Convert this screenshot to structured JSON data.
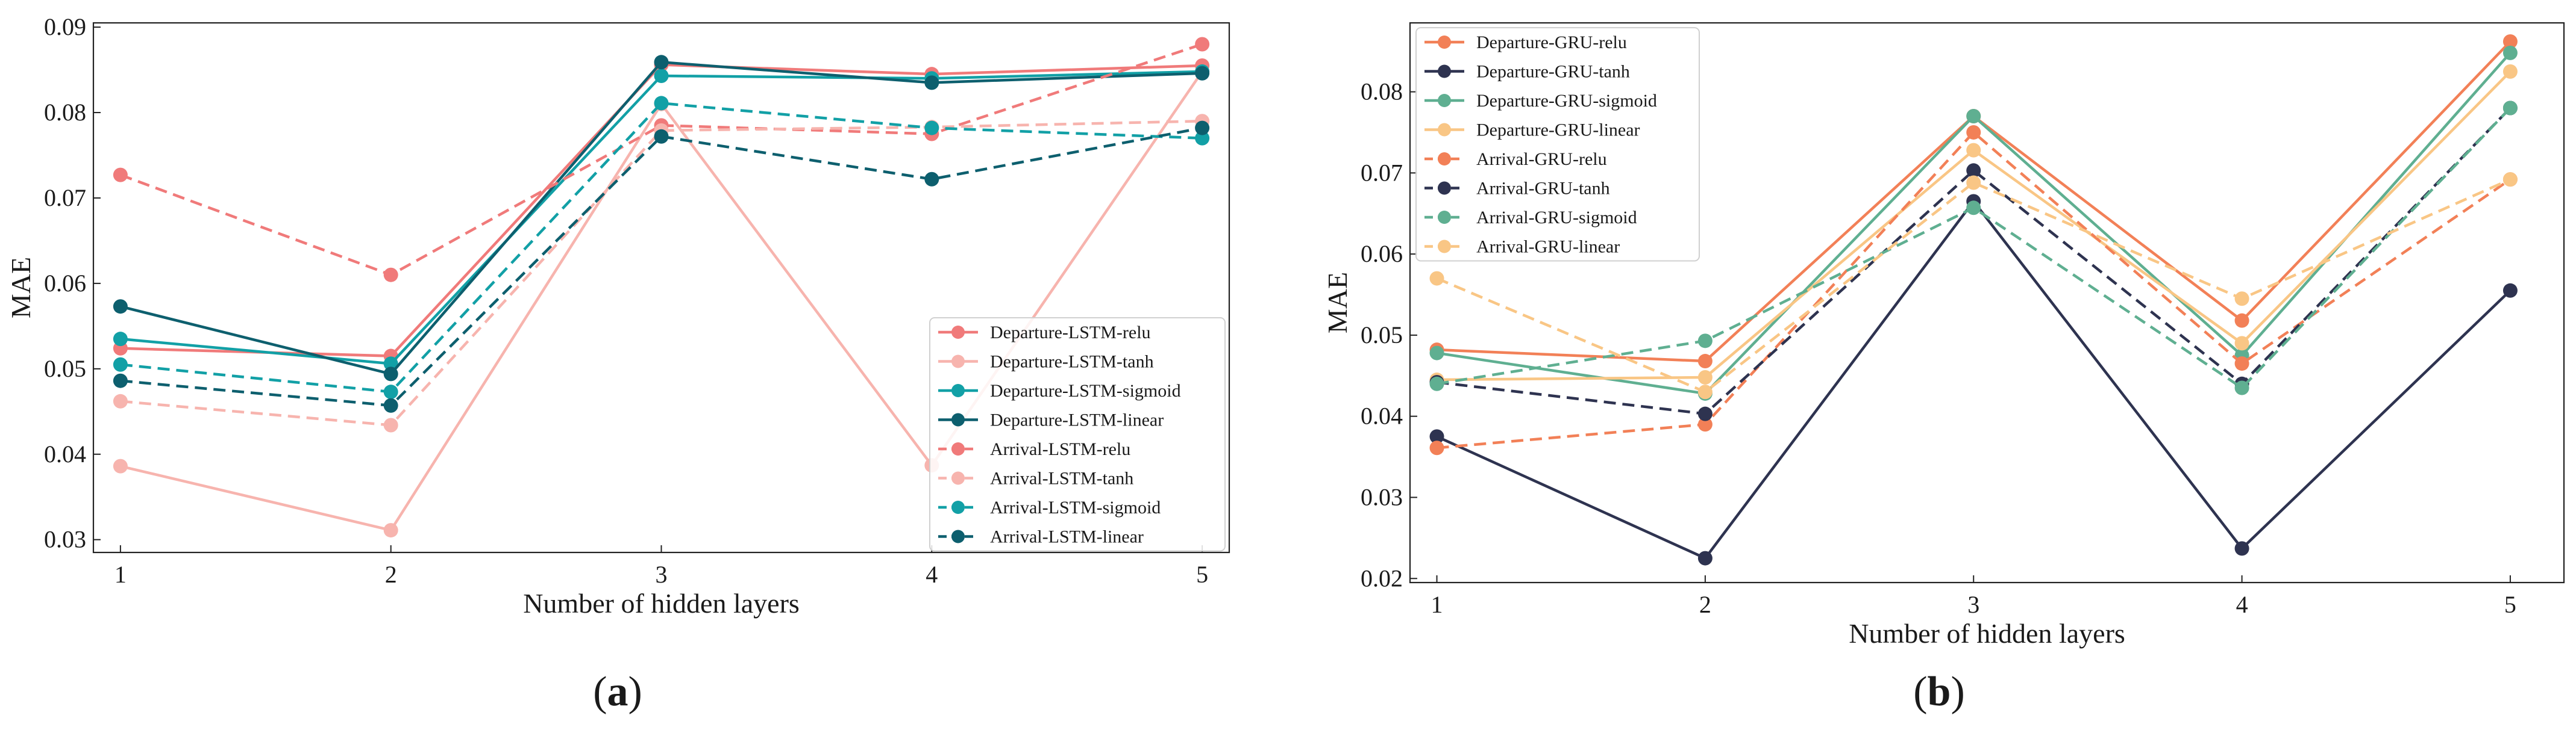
{
  "chart_data": [
    {
      "type": "line",
      "panel_label": {
        "open": "(",
        "letter": "a",
        "close": ")"
      },
      "title": "",
      "xlabel": "Number of hidden layers",
      "ylabel": "MAE",
      "x": [
        1,
        2,
        3,
        4,
        5
      ],
      "xlim": [
        0.9,
        5.1
      ],
      "ylim": [
        0.0285,
        0.0905
      ],
      "yticks": [
        0.03,
        0.04,
        0.05,
        0.06,
        0.07,
        0.08,
        0.09
      ],
      "ytick_labels": [
        "0.03",
        "0.04",
        "0.05",
        "0.06",
        "0.07",
        "0.08",
        "0.09"
      ],
      "xtick_labels": [
        "1",
        "2",
        "3",
        "4",
        "5"
      ],
      "grid": false,
      "legend_position": "bottom-right",
      "series": [
        {
          "name": "Departure-LSTM-relu",
          "color": "#F07A7A",
          "dash": "solid",
          "values": [
            0.0524,
            0.0515,
            0.0856,
            0.0845,
            0.0855
          ]
        },
        {
          "name": "Departure-LSTM-tanh",
          "color": "#F7B4AE",
          "dash": "solid",
          "values": [
            0.0386,
            0.0311,
            0.081,
            0.0387,
            0.0848
          ]
        },
        {
          "name": "Departure-LSTM-sigmoid",
          "color": "#12A0A6",
          "dash": "solid",
          "values": [
            0.0535,
            0.0506,
            0.0843,
            0.084,
            0.0848
          ]
        },
        {
          "name": "Departure-LSTM-linear",
          "color": "#0D5F6E",
          "dash": "solid",
          "values": [
            0.0573,
            0.0494,
            0.0859,
            0.0835,
            0.0846
          ]
        },
        {
          "name": "Arrival-LSTM-relu",
          "color": "#F07A7A",
          "dash": "dashed",
          "values": [
            0.0727,
            0.061,
            0.0785,
            0.0775,
            0.088
          ]
        },
        {
          "name": "Arrival-LSTM-tanh",
          "color": "#F7B4AE",
          "dash": "dashed",
          "values": [
            0.0462,
            0.0434,
            0.0779,
            0.0783,
            0.079
          ]
        },
        {
          "name": "Arrival-LSTM-sigmoid",
          "color": "#12A0A6",
          "dash": "dashed",
          "values": [
            0.0505,
            0.0473,
            0.0811,
            0.0782,
            0.077
          ]
        },
        {
          "name": "Arrival-LSTM-linear",
          "color": "#0D5F6E",
          "dash": "dashed",
          "values": [
            0.0486,
            0.0457,
            0.0772,
            0.0722,
            0.0782
          ]
        }
      ]
    },
    {
      "type": "line",
      "panel_label": {
        "open": "(",
        "letter": "b",
        "close": ")"
      },
      "title": "",
      "xlabel": "Number of hidden layers",
      "ylabel": "MAE",
      "x": [
        1,
        2,
        3,
        4,
        5
      ],
      "xlim": [
        0.9,
        5.2
      ],
      "ylim": [
        0.0195,
        0.0885
      ],
      "yticks": [
        0.02,
        0.03,
        0.04,
        0.05,
        0.06,
        0.07,
        0.08
      ],
      "ytick_labels": [
        "0.02",
        "0.03",
        "0.04",
        "0.05",
        "0.06",
        "0.07",
        "0.08"
      ],
      "xtick_labels": [
        "1",
        "2",
        "3",
        "4",
        "5"
      ],
      "grid": false,
      "legend_position": "top-left",
      "series": [
        {
          "name": "Departure-GRU-relu",
          "color": "#F28057",
          "dash": "solid",
          "values": [
            0.0482,
            0.0468,
            0.077,
            0.0518,
            0.0862
          ]
        },
        {
          "name": "Departure-GRU-tanh",
          "color": "#2E3350",
          "dash": "solid",
          "values": [
            0.0375,
            0.0225,
            0.0665,
            0.0237,
            0.0555
          ]
        },
        {
          "name": "Departure-GRU-sigmoid",
          "color": "#5FAF91",
          "dash": "solid",
          "values": [
            0.0478,
            0.0428,
            0.077,
            0.0475,
            0.0848
          ]
        },
        {
          "name": "Departure-GRU-linear",
          "color": "#F9C685",
          "dash": "solid",
          "values": [
            0.0445,
            0.0448,
            0.0728,
            0.049,
            0.0825
          ]
        },
        {
          "name": "Arrival-GRU-relu",
          "color": "#F28057",
          "dash": "dashed",
          "values": [
            0.0361,
            0.039,
            0.075,
            0.0465,
            0.0692
          ]
        },
        {
          "name": "Arrival-GRU-tanh",
          "color": "#2E3350",
          "dash": "dashed",
          "values": [
            0.0442,
            0.0403,
            0.0703,
            0.044,
            0.078
          ]
        },
        {
          "name": "Arrival-GRU-sigmoid",
          "color": "#5FAF91",
          "dash": "dashed",
          "values": [
            0.044,
            0.0493,
            0.0657,
            0.0435,
            0.078
          ]
        },
        {
          "name": "Arrival-GRU-linear",
          "color": "#F9C685",
          "dash": "dashed",
          "values": [
            0.057,
            0.043,
            0.0688,
            0.0545,
            0.0692
          ]
        }
      ]
    }
  ]
}
